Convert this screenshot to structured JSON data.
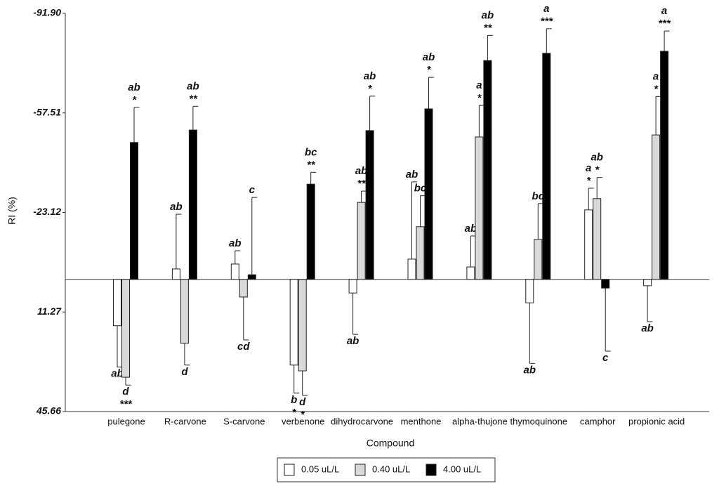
{
  "chart_data": {
    "type": "bar",
    "y_label": "RI (%)",
    "x_label": "Compound",
    "ylim": [
      -91.9,
      45.66
    ],
    "y_inverted": true,
    "yticks": [
      {
        "value": -91.9,
        "label": "-91.90"
      },
      -57.51,
      -23.12,
      11.27,
      45.66
    ],
    "categories": [
      "pulegone",
      "R-carvone",
      "S-carvone",
      "verbenone",
      "dihydrocarvone",
      "menthone",
      "alpha-thujone",
      "thymoquinone",
      "camphor",
      "propionic acid"
    ],
    "series": [
      {
        "name": "0.05 uL/L",
        "color": "#ffffff",
        "values": [
          16.0,
          -3.6,
          -5.3,
          29.6,
          4.7,
          -7.0,
          -4.3,
          8.1,
          -24.0,
          2.2
        ],
        "errors": [
          14.3,
          18.9,
          4.6,
          9.7,
          14.3,
          26.7,
          10.7,
          20.9,
          7.5,
          12.4
        ],
        "letters": [
          "ab",
          "ab",
          "ab",
          "b",
          "ab",
          "ab",
          "ab",
          "ab",
          "a",
          "ab"
        ],
        "stars": [
          null,
          null,
          null,
          "*",
          null,
          null,
          null,
          null,
          "*",
          null
        ]
      },
      {
        "name": "0.40 uL/L",
        "color": "#d9d9d9",
        "values": [
          33.8,
          22.1,
          6.1,
          31.6,
          -26.6,
          -18.2,
          -49.2,
          -13.8,
          -27.9,
          -49.9
        ],
        "errors": [
          2.7,
          7.5,
          14.8,
          8.5,
          3.9,
          10.7,
          10.9,
          12.4,
          7.3,
          13.3
        ],
        "letters": [
          "d",
          "d",
          "cd",
          "d",
          "ab",
          "bc",
          "a",
          "bc",
          "ab",
          "a"
        ],
        "stars": [
          "***",
          null,
          null,
          "*",
          "**",
          null,
          "*",
          null,
          "*",
          "*"
        ]
      },
      {
        "name": "4.00 uL/L",
        "color": "#000000",
        "values": [
          -47.3,
          -51.6,
          -1.6,
          -32.9,
          -51.4,
          -58.9,
          -75.6,
          -78.1,
          3.0,
          -78.8
        ],
        "errors": [
          12.1,
          8.2,
          26.7,
          4.1,
          11.9,
          10.9,
          8.7,
          8.5,
          21.8,
          7.0
        ],
        "letters": [
          "ab",
          "ab",
          "c",
          "bc",
          "ab",
          "ab",
          "ab",
          "a",
          "c",
          "a"
        ],
        "stars": [
          "*",
          "**",
          null,
          "**",
          "*",
          "*",
          "**",
          "***",
          null,
          "***"
        ]
      }
    ]
  }
}
